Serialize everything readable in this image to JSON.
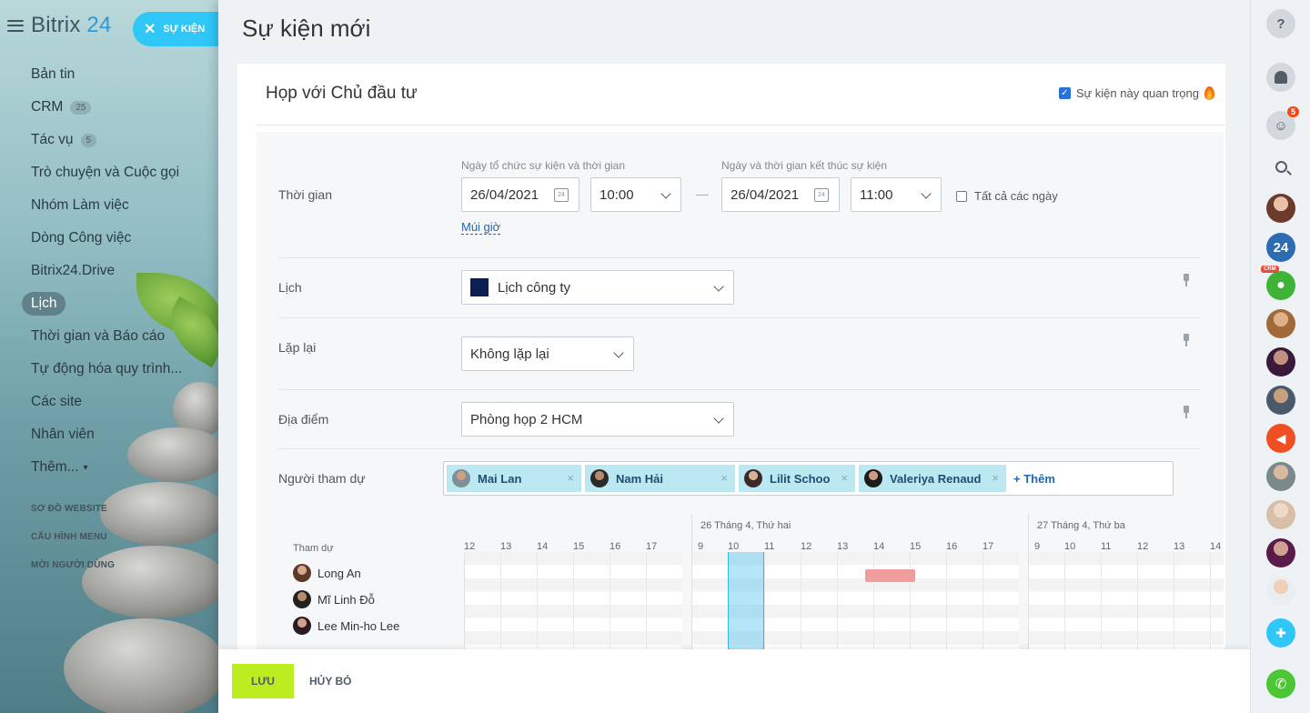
{
  "app": {
    "logo_word": "Bitrix",
    "logo_num": "24"
  },
  "event_chip": {
    "label": "SỰ KIỆN"
  },
  "sidebar": {
    "items": [
      {
        "label": "Bản tin"
      },
      {
        "label": "CRM",
        "badge": "25"
      },
      {
        "label": "Tác vụ",
        "badge": "5"
      },
      {
        "label": "Trò chuyện và Cuộc gọi"
      },
      {
        "label": "Nhóm Làm việc"
      },
      {
        "label": "Dòng Công việc"
      },
      {
        "label": "Bitrix24.Drive"
      },
      {
        "label": "Lịch",
        "active": true
      },
      {
        "label": "Thời gian và Báo cáo"
      },
      {
        "label": "Tự động hóa quy trình..."
      },
      {
        "label": "Các site"
      },
      {
        "label": "Nhân viên"
      },
      {
        "label": "Thêm..."
      }
    ],
    "small_links": [
      "SƠ ĐỒ WEBSITE",
      "CẤU HÌNH MENU",
      "MỜI NGƯỜI DÙNG"
    ]
  },
  "panel": {
    "title": "Sự kiện mới",
    "event_name": "Họp với Chủ đầu tư",
    "important_label": "Sự kiện này quan trọng",
    "time": {
      "label": "Thời gian",
      "start_caption": "Ngày tổ chức sự kiện và thời gian",
      "end_caption": "Ngày và thời gian kết thúc sự kiện",
      "start_date": "26/04/2021",
      "start_time": "10:00",
      "end_date": "26/04/2021",
      "end_time": "11:00",
      "all_day": "Tất cả các ngày",
      "timezone_link": "Múi giờ",
      "dash": "—",
      "cal_day": "24"
    },
    "calendar": {
      "label": "Lịch",
      "value": "Lịch công ty",
      "color": "#0b1f52"
    },
    "repeat": {
      "label": "Lặp lại",
      "value": "Không lặp lại"
    },
    "location": {
      "label": "Địa điểm",
      "value": "Phòng họp 2 HCM"
    },
    "attendees": {
      "label": "Người tham dự",
      "chips": [
        "Mai Lan",
        "Nam Hải",
        "Lilit Schoo",
        "Valeriya Renaud"
      ],
      "remove_glyph": "×",
      "add_label": "+ Thêm"
    },
    "planner": {
      "people_label": "Tham dự",
      "days": [
        "26 Tháng 4, Thứ hai",
        "27 Tháng 4, Thứ ba"
      ],
      "hours_prev": [
        "12",
        "13",
        "14",
        "15",
        "16",
        "17"
      ],
      "hours_day1": [
        "9",
        "10",
        "11",
        "12",
        "13",
        "14",
        "15",
        "16",
        "17"
      ],
      "hours_day2": [
        "9",
        "10",
        "11",
        "12",
        "13",
        "14"
      ],
      "people": [
        "Long An",
        "Mĩ Linh Đỗ",
        "Lee Min-ho Lee"
      ]
    }
  },
  "footer": {
    "save": "LƯU",
    "cancel": "HỦY BỎ"
  },
  "rightbar": {
    "help": "?",
    "chat_count": "5",
    "bitrix_badge": "24",
    "crm_tag": "CRM"
  },
  "colors": {
    "accent": "#2fc7f7",
    "save": "#bbed21",
    "link": "#2067b0",
    "busy": "#f19d9e"
  }
}
